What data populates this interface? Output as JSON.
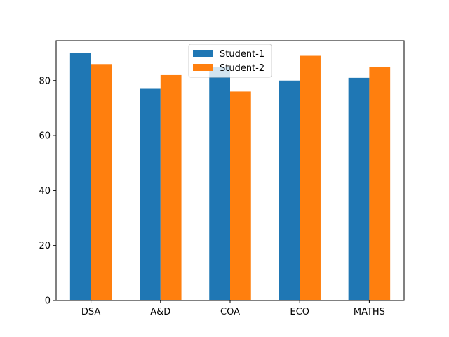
{
  "chart_data": {
    "type": "bar",
    "title": "",
    "xlabel": "",
    "ylabel": "",
    "categories": [
      "DSA",
      "A&D",
      "COA",
      "ECO",
      "MATHS"
    ],
    "series": [
      {
        "name": "Student-1",
        "color": "#1f77b4",
        "values": [
          90,
          77,
          85,
          80,
          81
        ]
      },
      {
        "name": "Student-2",
        "color": "#ff7f0e",
        "values": [
          86,
          82,
          76,
          89,
          85
        ]
      }
    ],
    "ylim": [
      0,
      94.5
    ],
    "yticks": [
      0,
      20,
      40,
      60,
      80
    ],
    "legend": {
      "position": "upper-center"
    },
    "grid": false
  }
}
